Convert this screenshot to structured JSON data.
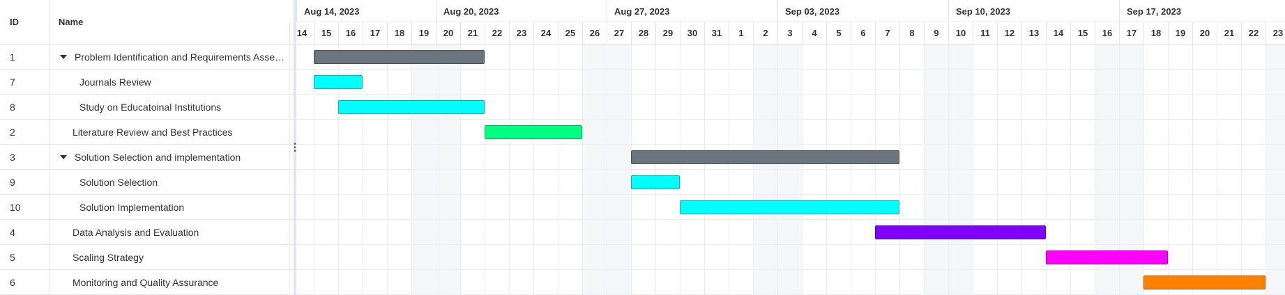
{
  "grid": {
    "header": {
      "id": "ID",
      "name": "Name"
    },
    "rows": [
      {
        "id": "1",
        "name": "Problem Identification and Requirements Asse…",
        "level": 0,
        "expandable": true
      },
      {
        "id": "7",
        "name": "Journals Review",
        "level": 1,
        "expandable": false
      },
      {
        "id": "8",
        "name": "Study on Educatoinal Institutions",
        "level": 1,
        "expandable": false
      },
      {
        "id": "2",
        "name": "Literature Review and Best Practices",
        "level": 0,
        "expandable": false
      },
      {
        "id": "3",
        "name": "Solution Selection and implementation",
        "level": 0,
        "expandable": true
      },
      {
        "id": "9",
        "name": "Solution Selection",
        "level": 1,
        "expandable": false
      },
      {
        "id": "10",
        "name": "Solution Implementation",
        "level": 1,
        "expandable": false
      },
      {
        "id": "4",
        "name": "Data Analysis and Evaluation",
        "level": 0,
        "expandable": false
      },
      {
        "id": "5",
        "name": "Scaling Strategy",
        "level": 0,
        "expandable": false
      },
      {
        "id": "6",
        "name": "Monitoring and Quality Assurance",
        "level": 0,
        "expandable": false
      }
    ]
  },
  "timeline": {
    "weeks": [
      "Aug 14, 2023",
      "Aug 20, 2023",
      "Aug 27, 2023",
      "Sep 03, 2023",
      "Sep 10, 2023",
      "Sep 17, 2023"
    ],
    "days": [
      "14",
      "15",
      "16",
      "17",
      "18",
      "19",
      "20",
      "21",
      "22",
      "23",
      "24",
      "25",
      "26",
      "27",
      "28",
      "29",
      "30",
      "31",
      "1",
      "2",
      "3",
      "4",
      "5",
      "6",
      "7",
      "8",
      "9",
      "10",
      "11",
      "12",
      "13",
      "14",
      "15",
      "16",
      "17",
      "18",
      "19",
      "20",
      "21",
      "22",
      "23"
    ],
    "weekend_day_indices": [
      5,
      6,
      12,
      13,
      19,
      20,
      26,
      27,
      33,
      34,
      40
    ]
  },
  "tasks": [
    {
      "id": "1",
      "start_day": 1,
      "end_day": 8,
      "color": "#6c757d",
      "border": "#4a5056"
    },
    {
      "id": "7",
      "start_day": 1,
      "end_day": 3,
      "color": "#00ffff",
      "border": "#00b3b3"
    },
    {
      "id": "8",
      "start_day": 2,
      "end_day": 8,
      "color": "#00ffff",
      "border": "#00b3b3"
    },
    {
      "id": "2",
      "start_day": 8,
      "end_day": 12,
      "color": "#00ff80",
      "border": "#00b35a"
    },
    {
      "id": "3",
      "start_day": 14,
      "end_day": 25,
      "color": "#6c757d",
      "border": "#4a5056"
    },
    {
      "id": "9",
      "start_day": 14,
      "end_day": 16,
      "color": "#00ffff",
      "border": "#00b3b3"
    },
    {
      "id": "10",
      "start_day": 16,
      "end_day": 25,
      "color": "#00ffff",
      "border": "#00b3b3"
    },
    {
      "id": "4",
      "start_day": 24,
      "end_day": 31,
      "color": "#8000ff",
      "border": "#5a00b3"
    },
    {
      "id": "5",
      "start_day": 31,
      "end_day": 36,
      "color": "#ff00ff",
      "border": "#b300b3"
    },
    {
      "id": "6",
      "start_day": 35,
      "end_day": 40,
      "color": "#ff8000",
      "border": "#b35a00"
    }
  ]
}
